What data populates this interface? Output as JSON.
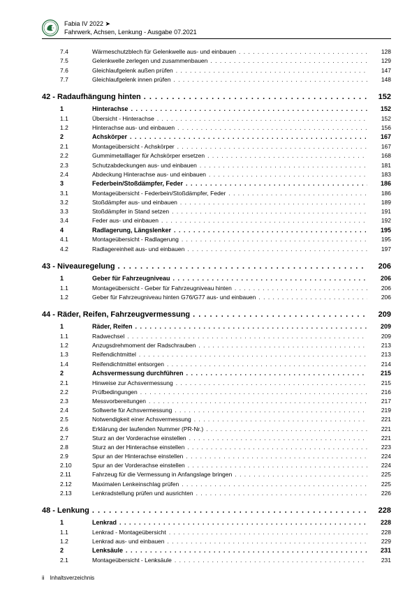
{
  "header": {
    "model_line": "Fabia IV 2022 ➤",
    "doc_line": "Fahrwerk, Achsen, Lenkung - Ausgabe 07.2021"
  },
  "toc": [
    {
      "lvl": 2,
      "num": "7.4",
      "title": "Wärmeschutzblech für Gelenkwelle aus- und einbauen",
      "page": "128"
    },
    {
      "lvl": 2,
      "num": "7.5",
      "title": "Gelenkwelle zerlegen und zusammenbauen",
      "page": "129"
    },
    {
      "lvl": 2,
      "num": "7.6",
      "title": "Gleichlaufgelenk außen prüfen",
      "page": "147"
    },
    {
      "lvl": 2,
      "num": "7.7",
      "title": "Gleichlaufgelenk innen prüfen",
      "page": "148"
    },
    {
      "lvl": 0,
      "num": "42 - ",
      "title": "Radaufhängung hinten",
      "page": "152"
    },
    {
      "lvl": 1,
      "num": "1",
      "title": "Hinterachse",
      "page": "152"
    },
    {
      "lvl": 2,
      "num": "1.1",
      "title": "Übersicht - Hinterachse",
      "page": "152"
    },
    {
      "lvl": 2,
      "num": "1.2",
      "title": "Hinterachse aus- und einbauen",
      "page": "156"
    },
    {
      "lvl": 1,
      "num": "2",
      "title": "Achskörper",
      "page": "167"
    },
    {
      "lvl": 2,
      "num": "2.1",
      "title": "Montageübersicht - Achskörper",
      "page": "167"
    },
    {
      "lvl": 2,
      "num": "2.2",
      "title": "Gummimetalllager für Achskörper ersetzen",
      "page": "168"
    },
    {
      "lvl": 2,
      "num": "2.3",
      "title": "Schutzabdeckungen aus- und einbauen",
      "page": "181"
    },
    {
      "lvl": 2,
      "num": "2.4",
      "title": "Abdeckung Hinterachse aus- und einbauen",
      "page": "183"
    },
    {
      "lvl": 1,
      "num": "3",
      "title": "Federbein/Stoßdämpfer, Feder",
      "page": "186"
    },
    {
      "lvl": 2,
      "num": "3.1",
      "title": "Montageübersicht - Federbein/Stoßdämpfer, Feder",
      "page": "186"
    },
    {
      "lvl": 2,
      "num": "3.2",
      "title": "Stoßdämpfer aus- und einbauen",
      "page": "189"
    },
    {
      "lvl": 2,
      "num": "3.3",
      "title": "Stoßdämpfer in Stand setzen",
      "page": "191"
    },
    {
      "lvl": 2,
      "num": "3.4",
      "title": "Feder aus- und einbauen",
      "page": "192"
    },
    {
      "lvl": 1,
      "num": "4",
      "title": "Radlagerung, Längslenker",
      "page": "195"
    },
    {
      "lvl": 2,
      "num": "4.1",
      "title": "Montageübersicht - Radlagerung",
      "page": "195"
    },
    {
      "lvl": 2,
      "num": "4.2",
      "title": "Radlagereinheit aus- und einbauen",
      "page": "197"
    },
    {
      "lvl": 0,
      "num": "43 - ",
      "title": "Niveauregelung",
      "page": "206"
    },
    {
      "lvl": 1,
      "num": "1",
      "title": "Geber für Fahrzeugniveau",
      "page": "206"
    },
    {
      "lvl": 2,
      "num": "1.1",
      "title": "Montageübersicht - Geber für Fahrzeugniveau hinten",
      "page": "206"
    },
    {
      "lvl": 2,
      "num": "1.2",
      "title": "Geber für Fahrzeugniveau hinten G76/G77 aus- und einbauen",
      "page": "206"
    },
    {
      "lvl": 0,
      "num": "44 - ",
      "title": "Räder, Reifen, Fahrzeugvermessung",
      "page": "209"
    },
    {
      "lvl": 1,
      "num": "1",
      "title": "Räder, Reifen",
      "page": "209"
    },
    {
      "lvl": 2,
      "num": "1.1",
      "title": "Radwechsel",
      "page": "209"
    },
    {
      "lvl": 2,
      "num": "1.2",
      "title": "Anzugsdrehmoment der Radschrauben",
      "page": "213"
    },
    {
      "lvl": 2,
      "num": "1.3",
      "title": "Reifendichtmittel",
      "page": "213"
    },
    {
      "lvl": 2,
      "num": "1.4",
      "title": "Reifendichtmittel entsorgen",
      "page": "214"
    },
    {
      "lvl": 1,
      "num": "2",
      "title": "Achsvermessung durchführen",
      "page": "215"
    },
    {
      "lvl": 2,
      "num": "2.1",
      "title": "Hinweise zur Achsvermessung",
      "page": "215"
    },
    {
      "lvl": 2,
      "num": "2.2",
      "title": "Prüfbedingungen",
      "page": "216"
    },
    {
      "lvl": 2,
      "num": "2.3",
      "title": "Messvorbereitungen",
      "page": "217"
    },
    {
      "lvl": 2,
      "num": "2.4",
      "title": "Sollwerte für Achsvermessung",
      "page": "219"
    },
    {
      "lvl": 2,
      "num": "2.5",
      "title": "Notwendigkeit einer Achsvermessung",
      "page": "221"
    },
    {
      "lvl": 2,
      "num": "2.6",
      "title": "Erklärung der laufenden Nummer (PR-Nr.)",
      "page": "221"
    },
    {
      "lvl": 2,
      "num": "2.7",
      "title": "Sturz an der Vorderachse einstellen",
      "page": "221"
    },
    {
      "lvl": 2,
      "num": "2.8",
      "title": "Sturz an der Hinterachse einstellen",
      "page": "223"
    },
    {
      "lvl": 2,
      "num": "2.9",
      "title": "Spur an der Hinterachse einstellen",
      "page": "224"
    },
    {
      "lvl": 2,
      "num": "2.10",
      "title": "Spur an der Vorderachse einstellen",
      "page": "224"
    },
    {
      "lvl": 2,
      "num": "2.11",
      "title": "Fahrzeug für die Vermessung in Anfangslage bringen",
      "page": "225"
    },
    {
      "lvl": 2,
      "num": "2.12",
      "title": "Maximalen Lenkeinschlag prüfen",
      "page": "225"
    },
    {
      "lvl": 2,
      "num": "2.13",
      "title": "Lenkradstellung prüfen und ausrichten",
      "page": "226"
    },
    {
      "lvl": 0,
      "num": "48 - ",
      "title": "Lenkung",
      "page": "228"
    },
    {
      "lvl": 1,
      "num": "1",
      "title": "Lenkrad",
      "page": "228"
    },
    {
      "lvl": 2,
      "num": "1.1",
      "title": "Lenkrad - Montageübersicht",
      "page": "228"
    },
    {
      "lvl": 2,
      "num": "1.2",
      "title": "Lenkrad aus- und einbauen",
      "page": "229"
    },
    {
      "lvl": 1,
      "num": "2",
      "title": "Lenksäule",
      "page": "231"
    },
    {
      "lvl": 2,
      "num": "2.1",
      "title": "Montageübersicht - Lenksäule",
      "page": "231"
    }
  ],
  "footer": {
    "roman": "ii",
    "label": "Inhaltsverzeichnis"
  },
  "colors": {
    "logo_outer": "#1f6b3a",
    "logo_inner": "#ffffff"
  }
}
